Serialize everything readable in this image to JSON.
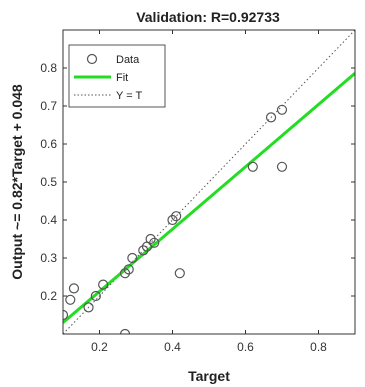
{
  "chart_data": {
    "type": "scatter",
    "title": "Validation: R=0.92733",
    "xlabel": "Target",
    "ylabel": "Output ~= 0.82*Target + 0.048",
    "xlim": [
      0.1,
      0.9
    ],
    "ylim": [
      0.1,
      0.9
    ],
    "x_ticks": [
      "0.2",
      "0.4",
      "0.6",
      "0.8"
    ],
    "x_tick_values": [
      0.2,
      0.4,
      0.6,
      0.8
    ],
    "y_ticks": [
      "0.2",
      "0.3",
      "0.4",
      "0.5",
      "0.6",
      "0.7",
      "0.8"
    ],
    "y_tick_values": [
      0.2,
      0.3,
      0.4,
      0.5,
      0.6,
      0.7,
      0.8
    ],
    "grid": false,
    "legend_position": "top-left",
    "legend": [
      "Data",
      "Fit",
      "Y = T"
    ],
    "data_points": [
      {
        "x": 0.1,
        "y": 0.15
      },
      {
        "x": 0.12,
        "y": 0.19
      },
      {
        "x": 0.13,
        "y": 0.22
      },
      {
        "x": 0.17,
        "y": 0.17
      },
      {
        "x": 0.19,
        "y": 0.2
      },
      {
        "x": 0.21,
        "y": 0.23
      },
      {
        "x": 0.27,
        "y": 0.1
      },
      {
        "x": 0.27,
        "y": 0.26
      },
      {
        "x": 0.28,
        "y": 0.27
      },
      {
        "x": 0.29,
        "y": 0.3
      },
      {
        "x": 0.32,
        "y": 0.32
      },
      {
        "x": 0.33,
        "y": 0.33
      },
      {
        "x": 0.34,
        "y": 0.35
      },
      {
        "x": 0.35,
        "y": 0.34
      },
      {
        "x": 0.4,
        "y": 0.4
      },
      {
        "x": 0.41,
        "y": 0.41
      },
      {
        "x": 0.42,
        "y": 0.26
      },
      {
        "x": 0.62,
        "y": 0.54
      },
      {
        "x": 0.67,
        "y": 0.67
      },
      {
        "x": 0.7,
        "y": 0.69
      },
      {
        "x": 0.7,
        "y": 0.54
      }
    ],
    "fit": {
      "slope": 0.82,
      "intercept": 0.048
    },
    "colors": {
      "data": "#555555",
      "fit": "#22dd22",
      "identity": "#555555"
    }
  }
}
